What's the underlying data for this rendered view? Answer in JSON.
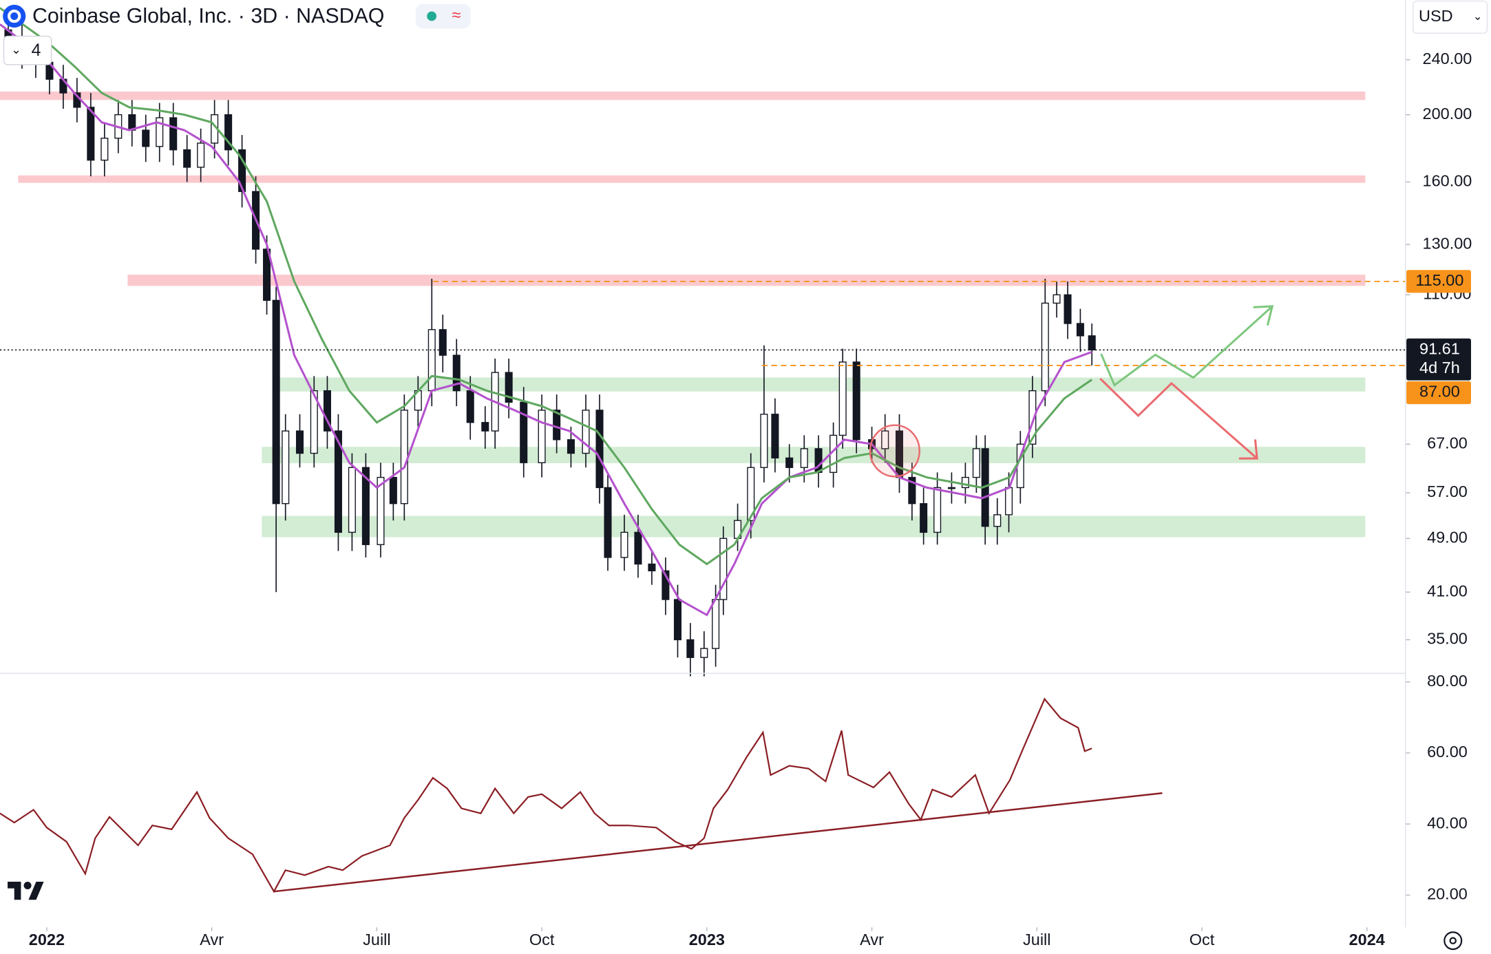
{
  "header": {
    "title": "Coinbase Global, Inc. · 3D · NASDAQ",
    "currency": "USD",
    "indicator_count": "4"
  },
  "chart_data": [
    {
      "type": "candlestick",
      "log": true,
      "x": [
        -0.7,
        -0.45,
        -0.2,
        0.05,
        0.3,
        0.55,
        0.8,
        1.05,
        1.3,
        1.55,
        1.8,
        2.05,
        2.3,
        2.55,
        2.8,
        3.05,
        3.3,
        3.55,
        3.8,
        4.0,
        4.17,
        4.34,
        4.6,
        4.86,
        5.1,
        5.3,
        5.55,
        5.8,
        6.07,
        6.3,
        6.5,
        6.75,
        7.0,
        7.2,
        7.45,
        7.7,
        7.97,
        8.15,
        8.4,
        8.67,
        9.0,
        9.27,
        9.53,
        9.8,
        10.05,
        10.2,
        10.5,
        10.75,
        11.0,
        11.25,
        11.47,
        11.7,
        11.95,
        12.16,
        12.3,
        12.56,
        12.8,
        13.04,
        13.24,
        13.5,
        13.77,
        14.03,
        14.3,
        14.47,
        14.72,
        15.0,
        15.24,
        15.5,
        15.73,
        15.94,
        16.19,
        16.45,
        16.7,
        16.9,
        17.06,
        17.28,
        17.49,
        17.7,
        17.92,
        18.15,
        18.36,
        18.56,
        18.79,
        19.0
      ],
      "open": [
        265,
        258,
        245,
        238,
        225,
        215,
        205,
        172,
        185,
        200,
        190,
        180,
        198,
        178,
        168,
        182,
        200,
        178,
        155,
        128,
        108,
        55,
        70,
        65,
        80,
        70,
        50,
        62,
        48,
        60,
        55,
        75,
        80,
        98,
        90,
        80,
        72,
        70,
        85,
        77,
        63,
        75,
        68,
        65,
        75,
        58,
        46,
        50,
        45,
        44,
        40,
        35,
        33,
        34,
        40,
        49,
        52,
        62,
        74,
        64,
        62,
        66,
        61,
        69,
        88,
        68,
        66,
        70,
        60,
        55,
        50,
        58,
        58,
        60,
        66,
        51,
        53,
        58,
        67,
        80,
        107,
        110,
        100,
        96
      ],
      "high": [
        278,
        271,
        257,
        250,
        236,
        226,
        215,
        194,
        210,
        210,
        200,
        208,
        208,
        187,
        191,
        210,
        210,
        187,
        163,
        134,
        113,
        74,
        74,
        84,
        84,
        74,
        65,
        65,
        63,
        63,
        79,
        84,
        116,
        103,
        95,
        84,
        76,
        89,
        89,
        81,
        79,
        79,
        71,
        79,
        79,
        61,
        53,
        53,
        47,
        46,
        42,
        37,
        36,
        42,
        51,
        55,
        65,
        93,
        78,
        67,
        69,
        69,
        72,
        92,
        92,
        71,
        74,
        74,
        63,
        58,
        61,
        61,
        63,
        69,
        69,
        56,
        61,
        70,
        84,
        116,
        115,
        115,
        105,
        100
      ],
      "low": [
        245,
        233,
        226,
        214,
        204,
        195,
        163,
        163,
        176,
        180,
        171,
        171,
        169,
        160,
        160,
        173,
        169,
        147,
        122,
        103,
        41,
        52,
        62,
        62,
        66,
        47,
        47,
        46,
        46,
        52,
        52,
        71,
        76,
        85,
        76,
        68,
        66,
        66,
        73,
        60,
        60,
        65,
        62,
        62,
        55,
        44,
        44,
        43,
        42,
        38,
        33,
        31,
        31,
        32,
        38,
        47,
        49,
        59,
        61,
        59,
        59,
        58,
        58,
        66,
        65,
        63,
        63,
        57,
        52,
        48,
        48,
        55,
        55,
        57,
        48,
        48,
        50,
        55,
        64,
        76,
        102,
        95,
        91,
        87
      ],
      "close": [
        258,
        245,
        238,
        225,
        215,
        205,
        172,
        185,
        200,
        190,
        180,
        198,
        178,
        168,
        182,
        200,
        178,
        155,
        128,
        108,
        55,
        70,
        65,
        80,
        70,
        50,
        62,
        48,
        60,
        55,
        75,
        80,
        98,
        90,
        80,
        72,
        70,
        85,
        77,
        63,
        75,
        68,
        65,
        75,
        58,
        46,
        50,
        45,
        44,
        40,
        35,
        33,
        34,
        40,
        49,
        52,
        62,
        74,
        64,
        62,
        66,
        61,
        69,
        88,
        68,
        66,
        70,
        60,
        55,
        50,
        58,
        58,
        60,
        66,
        51,
        53,
        58,
        67,
        80,
        107,
        110,
        100,
        96,
        91.61
      ],
      "series": [
        {
          "color": "#b452cd",
          "x": [
            -0.85,
            0,
            0.5,
            1,
            1.5,
            2,
            2.5,
            3,
            3.5,
            4,
            4.5,
            5,
            5.5,
            6,
            6.5,
            7,
            7.5,
            8,
            8.5,
            9,
            9.5,
            10,
            10.5,
            11,
            11.5,
            12,
            12.5,
            13,
            13.5,
            14,
            14.5,
            15,
            15.5,
            16,
            16.5,
            17,
            17.5,
            18,
            18.5,
            19
          ],
          "values": [
            270,
            240,
            215,
            195,
            190,
            195,
            190,
            180,
            160,
            130,
            90,
            75,
            63,
            58,
            62,
            80,
            82,
            78,
            75,
            72,
            70,
            65,
            55,
            47,
            40,
            38,
            45,
            55,
            60,
            62,
            68,
            67,
            60,
            58,
            57,
            56,
            58,
            75,
            88,
            91
          ]
        },
        {
          "color": "#5fa860",
          "x": [
            -0.85,
            0,
            0.5,
            1,
            1.5,
            2,
            2.5,
            3,
            3.5,
            4,
            4.5,
            5,
            5.5,
            6,
            6.5,
            7,
            7.5,
            8,
            8.5,
            9,
            9.5,
            10,
            10.5,
            11,
            11.5,
            12,
            12.5,
            13,
            13.5,
            14,
            14.5,
            15,
            15.5,
            16,
            16.5,
            17,
            17.5,
            18,
            18.5,
            19
          ],
          "values": [
            285,
            255,
            235,
            215,
            205,
            203,
            200,
            195,
            175,
            150,
            115,
            95,
            80,
            72,
            76,
            84,
            83,
            80,
            78,
            76,
            73,
            70,
            62,
            54,
            48,
            45,
            48,
            56,
            60,
            61,
            64,
            65,
            62,
            60,
            59,
            58,
            60,
            70,
            78,
            83
          ]
        }
      ],
      "zones": [
        {
          "low": 210,
          "high": 216,
          "from": -0.85,
          "to": 23.97,
          "color": "#fbc9cd"
        },
        {
          "low": 159.5,
          "high": 163.5,
          "from": -0.52,
          "to": 23.97,
          "color": "#fbc9cd"
        },
        {
          "low": 113.3,
          "high": 117.6,
          "from": 1.47,
          "to": 23.97,
          "color": "#fbc9cd"
        },
        {
          "low": 79.8,
          "high": 83.6,
          "from": 4.19,
          "to": 23.97,
          "color": "#d3ecd4"
        },
        {
          "low": 62.9,
          "high": 66.4,
          "from": 3.91,
          "to": 23.97,
          "color": "#d3ecd4"
        },
        {
          "low": 49.2,
          "high": 52.8,
          "from": 3.91,
          "to": 23.97,
          "color": "#d3ecd4"
        }
      ],
      "levels": [
        {
          "value": 115,
          "label": "115.00",
          "from": 7.02,
          "color": "#f7931a",
          "style": "dashed"
        },
        {
          "value": 91.61,
          "label": "91.61",
          "sublabel": "4d 7h",
          "from": -0.85,
          "color": "#131722",
          "style": "dotted"
        },
        {
          "value": 87,
          "label": "87.00",
          "from": 13.0,
          "color": "#f7931a",
          "style": "dashed"
        }
      ],
      "xlim": [
        -0.85,
        24.7
      ],
      "xticks": [
        {
          "value": 0,
          "label": "2022"
        },
        {
          "value": 3,
          "label": "Avr"
        },
        {
          "value": 6,
          "label": "Juill"
        },
        {
          "value": 9,
          "label": "Oct"
        },
        {
          "value": 12,
          "label": "2023"
        },
        {
          "value": 15,
          "label": "Avr"
        },
        {
          "value": 18,
          "label": "Juill"
        },
        {
          "value": 21,
          "label": "Oct"
        },
        {
          "value": 24,
          "label": "2024"
        }
      ],
      "ylim": [
        31.3,
        292.7
      ],
      "yticks": [
        {
          "value": 240,
          "label": "240.00"
        },
        {
          "value": 200,
          "label": "200.00"
        },
        {
          "value": 160,
          "label": "160.00"
        },
        {
          "value": 130,
          "label": "130.00"
        },
        {
          "value": 110,
          "label": "110.00"
        },
        {
          "value": 67,
          "label": "67.00"
        },
        {
          "value": 57,
          "label": "57.00"
        },
        {
          "value": 49,
          "label": "49.00"
        },
        {
          "value": 41,
          "label": "41.00"
        },
        {
          "value": 35,
          "label": "35.00"
        }
      ]
    },
    {
      "type": "line",
      "color": "#8b1e24",
      "x": [
        -0.85,
        -0.59,
        -0.24,
        0,
        0.36,
        0.7,
        0.88,
        1.14,
        1.4,
        1.66,
        1.92,
        2.27,
        2.73,
        2.96,
        3.3,
        3.74,
        4.13,
        4.34,
        4.69,
        5.12,
        5.38,
        5.73,
        6.24,
        6.5,
        6.76,
        7.02,
        7.28,
        7.54,
        7.89,
        8.15,
        8.49,
        8.75,
        9.0,
        9.36,
        9.7,
        9.96,
        10.22,
        10.57,
        11.08,
        11.43,
        11.72,
        11.95,
        12.12,
        12.38,
        12.73,
        13.02,
        13.16,
        13.5,
        13.85,
        14.16,
        14.45,
        14.57,
        15.03,
        15.32,
        15.67,
        15.89,
        16.1,
        16.45,
        16.88,
        17.13,
        17.51,
        17.73,
        18.14,
        18.43,
        18.75,
        18.87,
        19.0
      ],
      "values": [
        43,
        40.4,
        44,
        39,
        35,
        26,
        36,
        42,
        38,
        34,
        39.6,
        38.5,
        49,
        41.7,
        36,
        31.5,
        21,
        27,
        25.6,
        28,
        27,
        31,
        34,
        41.7,
        47,
        53,
        50,
        44.4,
        43,
        50,
        43,
        47.6,
        48.4,
        44.4,
        49,
        43,
        39.6,
        39.6,
        39,
        35,
        33,
        36,
        44.4,
        49.7,
        59,
        65.8,
        53.8,
        56.4,
        55.6,
        52,
        66.3,
        53.8,
        50.3,
        54.6,
        45.7,
        41.2,
        49.7,
        47.6,
        53.8,
        43,
        52.4,
        60.5,
        75.2,
        69.8,
        67.1,
        60.5,
        61.3
      ],
      "trendline": {
        "x": [
          4.13,
          20.28
        ],
        "values": [
          21,
          48.7
        ]
      },
      "ylim": [
        10.9,
        82.4
      ],
      "yticks": [
        {
          "value": 80,
          "label": "80.00"
        },
        {
          "value": 60,
          "label": "60.00"
        },
        {
          "value": 40,
          "label": "40.00"
        },
        {
          "value": 20,
          "label": "20.00"
        }
      ]
    }
  ]
}
